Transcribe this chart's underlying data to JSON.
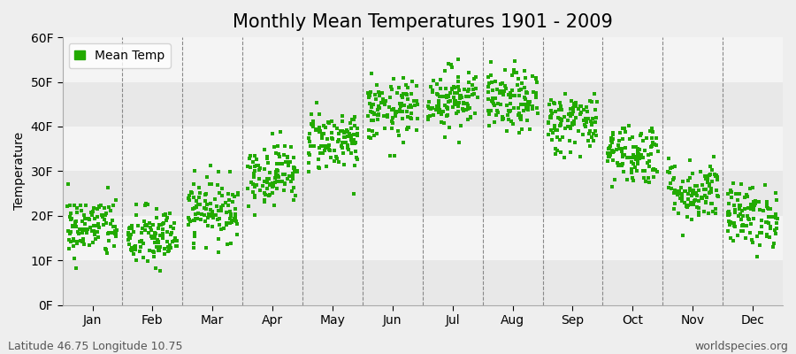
{
  "title": "Monthly Mean Temperatures 1901 - 2009",
  "ylabel": "Temperature",
  "bottom_left_text": "Latitude 46.75 Longitude 10.75",
  "bottom_right_text": "worldspecies.org",
  "legend_label": "Mean Temp",
  "dot_color": "#22aa00",
  "background_color": "#eeeeee",
  "band_colors": [
    "#e8e8e8",
    "#f4f4f4"
  ],
  "ytick_labels": [
    "0F",
    "10F",
    "20F",
    "30F",
    "40F",
    "50F",
    "60F"
  ],
  "ytick_values": [
    0,
    10,
    20,
    30,
    40,
    50,
    60
  ],
  "ylim": [
    0,
    60
  ],
  "months": [
    "Jan",
    "Feb",
    "Mar",
    "Apr",
    "May",
    "Jun",
    "Jul",
    "Aug",
    "Sep",
    "Oct",
    "Nov",
    "Dec"
  ],
  "month_mean_F": [
    17.5,
    15.0,
    21.5,
    29.5,
    37.0,
    43.5,
    46.5,
    45.5,
    41.0,
    34.0,
    25.5,
    20.0
  ],
  "month_std_F": [
    3.5,
    3.5,
    3.5,
    3.5,
    3.5,
    3.5,
    3.5,
    3.5,
    3.5,
    3.5,
    3.5,
    3.5
  ],
  "n_years": 109,
  "random_seed": 42,
  "dot_size": 6,
  "dot_marker": "s",
  "dashed_line_color": "#888888",
  "title_fontsize": 15,
  "axis_label_fontsize": 10,
  "tick_fontsize": 10,
  "annotation_fontsize": 9
}
